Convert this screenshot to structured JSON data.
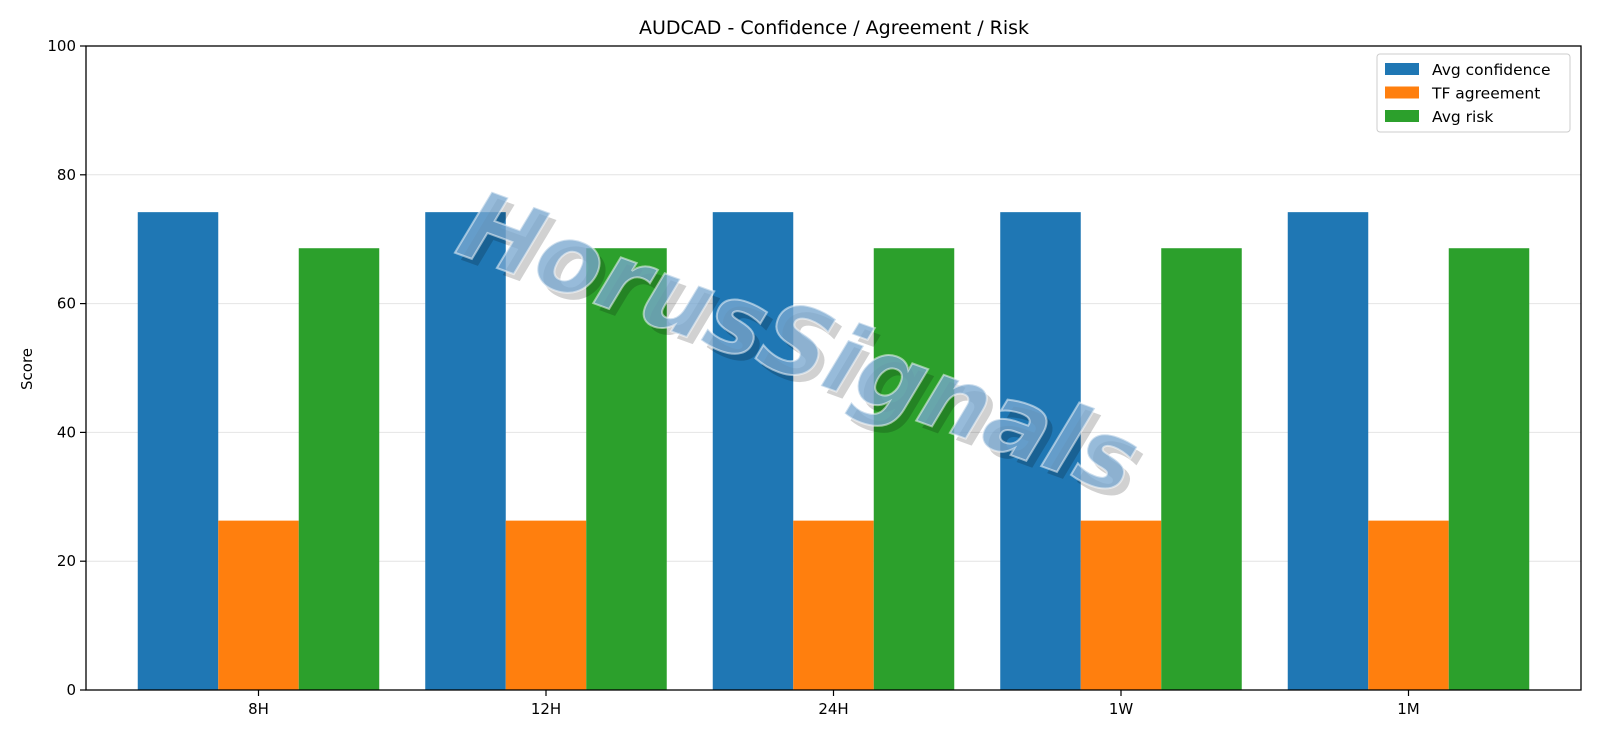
{
  "chart_data": {
    "type": "bar",
    "title": "AUDCAD - Confidence / Agreement / Risk",
    "xlabel": "",
    "ylabel": "Score",
    "ylim": [
      0,
      100
    ],
    "yticks": [
      0,
      20,
      40,
      60,
      80,
      100
    ],
    "categories": [
      "8H",
      "12H",
      "24H",
      "1W",
      "1M"
    ],
    "series": [
      {
        "name": "Avg confidence",
        "color": "#1f77b4",
        "values": [
          74.2,
          74.2,
          74.2,
          74.2,
          74.2
        ]
      },
      {
        "name": "TF agreement",
        "color": "#ff7f0e",
        "values": [
          26.3,
          26.3,
          26.3,
          26.3,
          26.3
        ]
      },
      {
        "name": "Avg risk",
        "color": "#2ca02c",
        "values": [
          68.6,
          68.6,
          68.6,
          68.6,
          68.6
        ]
      }
    ],
    "grid": "y",
    "legend_position": "top-right"
  },
  "watermark": {
    "text": "HorusSignals"
  }
}
